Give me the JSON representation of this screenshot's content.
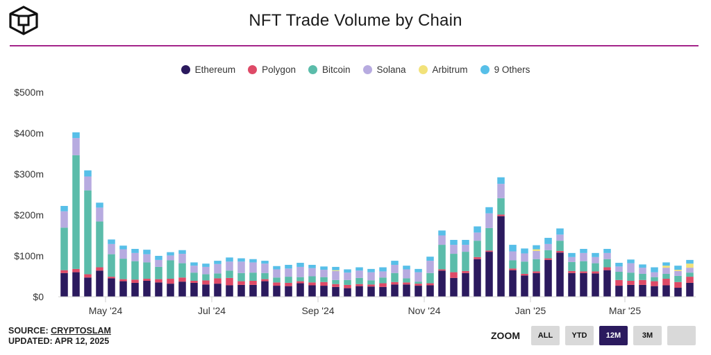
{
  "title": "NFT Trade Volume by Chain",
  "colors": {
    "accent_rule": "#a4238a",
    "Ethereum": "#2b1a5e",
    "Polygon": "#de4a67",
    "Bitcoin": "#5bbcaa",
    "Solana": "#b7abe0",
    "Arbitrum": "#f2e27a",
    "9 Others": "#57bfe8"
  },
  "legend": [
    {
      "name": "Ethereum",
      "color": "#2b1a5e"
    },
    {
      "name": "Polygon",
      "color": "#de4a67"
    },
    {
      "name": "Bitcoin",
      "color": "#5bbcaa"
    },
    {
      "name": "Solana",
      "color": "#b7abe0"
    },
    {
      "name": "Arbitrum",
      "color": "#f2e27a"
    },
    {
      "name": "9 Others",
      "color": "#57bfe8"
    }
  ],
  "footer": {
    "source_prefix": "SOURCE: ",
    "source_name": "CRYPTOSLAM",
    "updated": "UPDATED: APR 12, 2025"
  },
  "zoom": {
    "label": "ZOOM",
    "buttons": [
      "ALL",
      "YTD",
      "12M",
      "3M",
      ""
    ],
    "active": "12M"
  },
  "chart_data": {
    "type": "bar",
    "stacked": true,
    "title": "NFT Trade Volume by Chain",
    "xlabel": "",
    "ylabel": "",
    "ylim": [
      0,
      500
    ],
    "y_unit": "$m",
    "y_ticks": [
      "$0",
      "$100m",
      "$200m",
      "$300m",
      "$400m",
      "$500m"
    ],
    "y_tick_values": [
      0,
      100,
      200,
      300,
      400,
      500
    ],
    "x_ticks": [
      {
        "label": "May '24",
        "index": 3.5
      },
      {
        "label": "Jul '24",
        "index": 12.5
      },
      {
        "label": "Sep '24",
        "index": 21.5
      },
      {
        "label": "Nov '24",
        "index": 30.5
      },
      {
        "label": "Jan '25",
        "index": 39.5
      },
      {
        "label": "Mar '25",
        "index": 47.5
      }
    ],
    "grid": false,
    "legend_position": "top",
    "series": [
      {
        "name": "Ethereum",
        "values": [
          58,
          60,
          47,
          64,
          45,
          38,
          34,
          39,
          35,
          32,
          37,
          34,
          30,
          32,
          28,
          29,
          29,
          38,
          27,
          26,
          33,
          28,
          27,
          24,
          21,
          26,
          25,
          24,
          30,
          30,
          27,
          28,
          64,
          46,
          58,
          92,
          110,
          197,
          65,
          52,
          58,
          90,
          108,
          58,
          58,
          57,
          65,
          27,
          29,
          29,
          26,
          28,
          22,
          34
        ]
      },
      {
        "name": "Polygon",
        "values": [
          7,
          8,
          8,
          8,
          4,
          5,
          8,
          5,
          8,
          12,
          10,
          5,
          10,
          13,
          18,
          9,
          10,
          5,
          8,
          8,
          5,
          7,
          9,
          7,
          8,
          5,
          5,
          9,
          6,
          5,
          5,
          5,
          3,
          14,
          5,
          5,
          3,
          4,
          4,
          4,
          4,
          4,
          4,
          5,
          4,
          5,
          7,
          14,
          10,
          12,
          12,
          16,
          14,
          15
        ]
      },
      {
        "name": "Bitcoin",
        "values": [
          104,
          278,
          205,
          112,
          55,
          50,
          45,
          40,
          30,
          45,
          35,
          20,
          15,
          12,
          18,
          20,
          20,
          15,
          12,
          15,
          10,
          15,
          12,
          10,
          12,
          15,
          10,
          14,
          22,
          10,
          5,
          25,
          60,
          45,
          47,
          40,
          55,
          40,
          20,
          30,
          30,
          20,
          25,
          22,
          25,
          20,
          20,
          20,
          20,
          15,
          10,
          12,
          15,
          10
        ]
      },
      {
        "name": "Solana",
        "values": [
          40,
          42,
          34,
          34,
          25,
          23,
          20,
          20,
          17,
          12,
          23,
          17,
          18,
          23,
          22,
          28,
          25,
          23,
          20,
          20,
          25,
          20,
          18,
          22,
          18,
          18,
          20,
          15,
          20,
          22,
          23,
          30,
          23,
          22,
          17,
          20,
          36,
          35,
          22,
          20,
          20,
          15,
          15,
          12,
          20,
          15,
          15,
          13,
          23,
          15,
          12,
          15,
          12,
          12
        ]
      },
      {
        "name": "Arbitrum",
        "values": [
          0,
          0,
          0,
          0,
          0,
          0,
          0,
          0,
          0,
          0,
          0,
          0,
          0,
          0,
          0,
          0,
          0,
          0,
          0,
          0,
          0,
          0,
          0,
          2,
          0,
          0,
          0,
          0,
          0,
          0,
          0,
          0,
          0,
          0,
          0,
          0,
          0,
          0,
          0,
          0,
          4,
          0,
          0,
          0,
          0,
          0,
          0,
          0,
          0,
          0,
          0,
          5,
          3,
          10
        ]
      },
      {
        "name": "9 Others",
        "values": [
          13,
          14,
          15,
          12,
          11,
          9,
          10,
          11,
          10,
          8,
          9,
          8,
          8,
          8,
          10,
          8,
          8,
          7,
          8,
          9,
          10,
          8,
          8,
          8,
          8,
          8,
          8,
          10,
          10,
          9,
          8,
          10,
          12,
          12,
          12,
          15,
          15,
          16,
          16,
          12,
          10,
          15,
          15,
          10,
          10,
          10,
          10,
          9,
          9,
          8,
          12,
          8,
          10,
          9
        ]
      }
    ]
  }
}
